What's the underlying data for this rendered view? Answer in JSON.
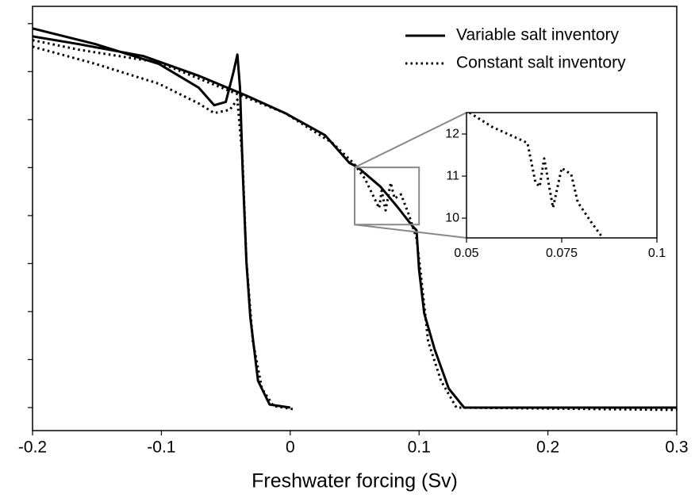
{
  "chart_data": {
    "type": "line",
    "xlabel": "Freshwater forcing (Sv)",
    "xlim": [
      -0.2,
      0.3
    ],
    "xticks": [
      -0.2,
      -0.1,
      0,
      0.1,
      0.2,
      0.3
    ],
    "ylim": [
      -1.2,
      20.9
    ],
    "yticks": [
      0,
      2.5,
      5,
      7.5,
      10,
      12.5,
      15,
      17.5,
      20
    ],
    "legend": "upper right",
    "series": [
      {
        "name": "Variable salt inventory",
        "color": "#000000",
        "dash": "solid",
        "x": [
          -0.2,
          -0.164,
          -0.114,
          -0.071,
          -0.034,
          -0.004,
          0.027,
          0.046,
          0.052,
          0.07,
          0.083,
          0.095,
          0.098,
          0.1,
          0.104,
          0.112,
          0.123,
          0.135,
          0.3,
          null,
          -0.2,
          -0.151,
          -0.102,
          -0.071,
          -0.059,
          -0.05,
          -0.044,
          -0.041,
          -0.039,
          -0.037,
          -0.034,
          -0.031,
          -0.025,
          -0.016,
          0
        ],
        "values": [
          19.34,
          18.93,
          18.31,
          17.28,
          16.25,
          15.34,
          14.19,
          12.74,
          12.54,
          11.51,
          10.47,
          9.44,
          9.24,
          7.18,
          4.91,
          3.05,
          0.99,
          0,
          0,
          null,
          19.75,
          18.93,
          17.9,
          16.66,
          15.75,
          15.92,
          17.48,
          18.39,
          16.66,
          12.54,
          7.59,
          4.7,
          1.4,
          0.16,
          0
        ]
      },
      {
        "name": "Constant salt inventory",
        "color": "#000000",
        "dash": "dotted",
        "x": [
          -0.2,
          -0.164,
          -0.102,
          -0.041,
          -0.004,
          0.033,
          0.049,
          0.058,
          0.064,
          0.069,
          0.071,
          0.074,
          0.078,
          0.081,
          0.086,
          0.092,
          0.098,
          0.101,
          0.107,
          0.117,
          0.129,
          0.3,
          null,
          -0.2,
          -0.151,
          -0.102,
          -0.071,
          -0.059,
          -0.047,
          -0.041,
          -0.037,
          -0.034,
          -0.029,
          -0.022,
          -0.013,
          0.002
        ],
        "values": [
          19.14,
          18.64,
          17.98,
          16.33,
          15.34,
          13.77,
          12.74,
          11.92,
          11.09,
          10.39,
          11.3,
          10.27,
          11.71,
          10.89,
          11.1,
          10.06,
          8.82,
          7.18,
          3.46,
          1.4,
          0,
          -0.12,
          null,
          18.8,
          17.9,
          16.87,
          15.84,
          15.34,
          15.51,
          16.04,
          12.95,
          7.59,
          3.46,
          0.99,
          0.08,
          -0.08
        ]
      }
    ],
    "inset": {
      "xlim": [
        0.05,
        0.1
      ],
      "xticks": [
        0.05,
        0.075,
        0.1
      ],
      "ylim": [
        9.53,
        12.51
      ],
      "yticks": [
        10,
        11,
        12
      ],
      "series": [
        {
          "name": "Constant salt inventory",
          "color": "#000000",
          "dash": "dotted",
          "x": [
            0.0508,
            0.0567,
            0.066,
            0.0681,
            0.0692,
            0.0704,
            0.0727,
            0.075,
            0.0775,
            0.0792,
            0.0827,
            0.0858
          ],
          "values": [
            12.51,
            12.17,
            11.79,
            10.85,
            10.75,
            11.42,
            10.25,
            11.19,
            11.04,
            10.38,
            9.91,
            9.53
          ]
        }
      ]
    }
  }
}
